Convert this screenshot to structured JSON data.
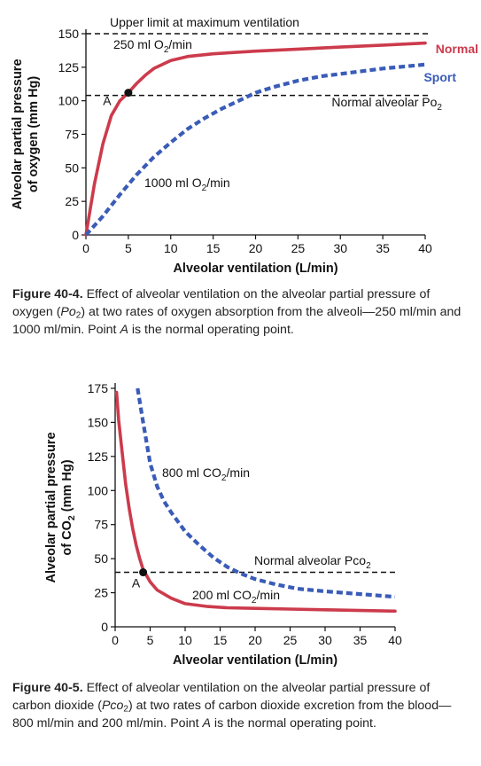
{
  "colors": {
    "normal": "#cc3b4c",
    "sport": "#3a5cb8",
    "axis": "#111111"
  },
  "chart_data": [
    {
      "type": "line",
      "xlabel": "Alveolar ventilation (L/min)",
      "ylabel_line1": "Alveolar partial pressure",
      "ylabel_line2": "of oxygen (mm Hg)",
      "xlim": [
        0,
        40
      ],
      "ylim": [
        0,
        150
      ],
      "xticks": [
        0,
        5,
        10,
        15,
        20,
        25,
        30,
        35,
        40
      ],
      "yticks": [
        0,
        25,
        50,
        75,
        100,
        125,
        150
      ],
      "reference_lines": [
        {
          "y": 150,
          "label": "Upper limit at maximum ventilation"
        },
        {
          "y": 104,
          "label": "Normal alveolar Po2"
        }
      ],
      "legend": [
        {
          "label": "Normal",
          "color": "#cc3b4c"
        },
        {
          "label": "Sport",
          "color": "#3a5cb8"
        }
      ],
      "series": [
        {
          "label": "250 ml O2/min",
          "color": "#cc3b4c",
          "style": "solid",
          "x": [
            0,
            1,
            2,
            3,
            4,
            5,
            6,
            7,
            8,
            10,
            12,
            15,
            20,
            25,
            30,
            35,
            40
          ],
          "y": [
            0,
            38,
            68,
            89,
            100,
            106,
            113,
            119,
            124,
            130,
            133,
            135,
            137,
            138.5,
            140,
            141.5,
            143
          ]
        },
        {
          "label": "1000 ml O2/min",
          "color": "#3a5cb8",
          "style": "dashed",
          "x": [
            0,
            2,
            4,
            6,
            8,
            10,
            12,
            14,
            16,
            18,
            20,
            22,
            25,
            28,
            30,
            35,
            40
          ],
          "y": [
            0,
            14,
            30,
            45,
            58,
            69,
            79,
            87,
            94,
            100,
            106,
            110,
            115,
            118.5,
            120,
            124,
            127
          ]
        }
      ],
      "annotations": [
        {
          "label": "A",
          "x": 5,
          "y": 106
        }
      ]
    },
    {
      "type": "line",
      "xlabel": "Alveolar ventilation (L/min)",
      "ylabel_line1": "Alveolar partial pressure",
      "ylabel_line2": "of CO2 (mm Hg)",
      "xlim": [
        0,
        40
      ],
      "ylim": [
        0,
        175
      ],
      "xticks": [
        0,
        5,
        10,
        15,
        20,
        25,
        30,
        35,
        40
      ],
      "yticks": [
        0,
        25,
        50,
        75,
        100,
        125,
        150,
        175
      ],
      "reference_lines": [
        {
          "y": 40,
          "label": "Normal alveolar Pco2"
        }
      ],
      "series": [
        {
          "label": "200 ml CO2/min",
          "color": "#cc3b4c",
          "style": "solid",
          "x": [
            0.2,
            0.5,
            1,
            1.5,
            2,
            2.5,
            3,
            3.5,
            4,
            5,
            6,
            8,
            10,
            13,
            16,
            20,
            25,
            30,
            35,
            40
          ],
          "y": [
            172,
            152,
            128,
            105,
            87,
            72,
            60,
            50,
            42,
            33,
            27,
            21,
            17,
            15,
            14,
            13.5,
            13,
            12.5,
            12,
            11.5
          ]
        },
        {
          "label": "800 ml CO2/min",
          "color": "#3a5cb8",
          "style": "dashed",
          "x": [
            3.2,
            4,
            5,
            6,
            7,
            8,
            9,
            10,
            12,
            14,
            16,
            18,
            20,
            23,
            26,
            30,
            35,
            40
          ],
          "y": [
            175,
            150,
            120,
            103,
            92,
            84,
            77,
            70,
            60,
            51,
            44,
            39,
            35,
            31,
            28,
            26,
            24,
            22
          ]
        }
      ],
      "annotations": [
        {
          "label": "A",
          "x": 4,
          "y": 40
        }
      ]
    }
  ],
  "captions": [
    {
      "label": "Figure 40-4.",
      "text_before": " Effect of alveolar ventilation on the alveolar partial pressure of oxygen (",
      "symbol": "Po",
      "symbol_sub": "2",
      "text_after": ") at two rates of oxygen absorption from the alveoli—250 ml/min and 1000 ml/min. Point ",
      "point": "A",
      "text_end": " is the normal operating point."
    },
    {
      "label": "Figure 40-5.",
      "text_before": " Effect of alveolar ventilation on the alveolar partial pressure of carbon dioxide (",
      "symbol": "Pco",
      "symbol_sub": "2",
      "text_after": ") at two rates of carbon dioxide excretion from the blood—800 ml/min and 200 ml/min. Point ",
      "point": "A",
      "text_end": " is the normal operating point."
    }
  ]
}
